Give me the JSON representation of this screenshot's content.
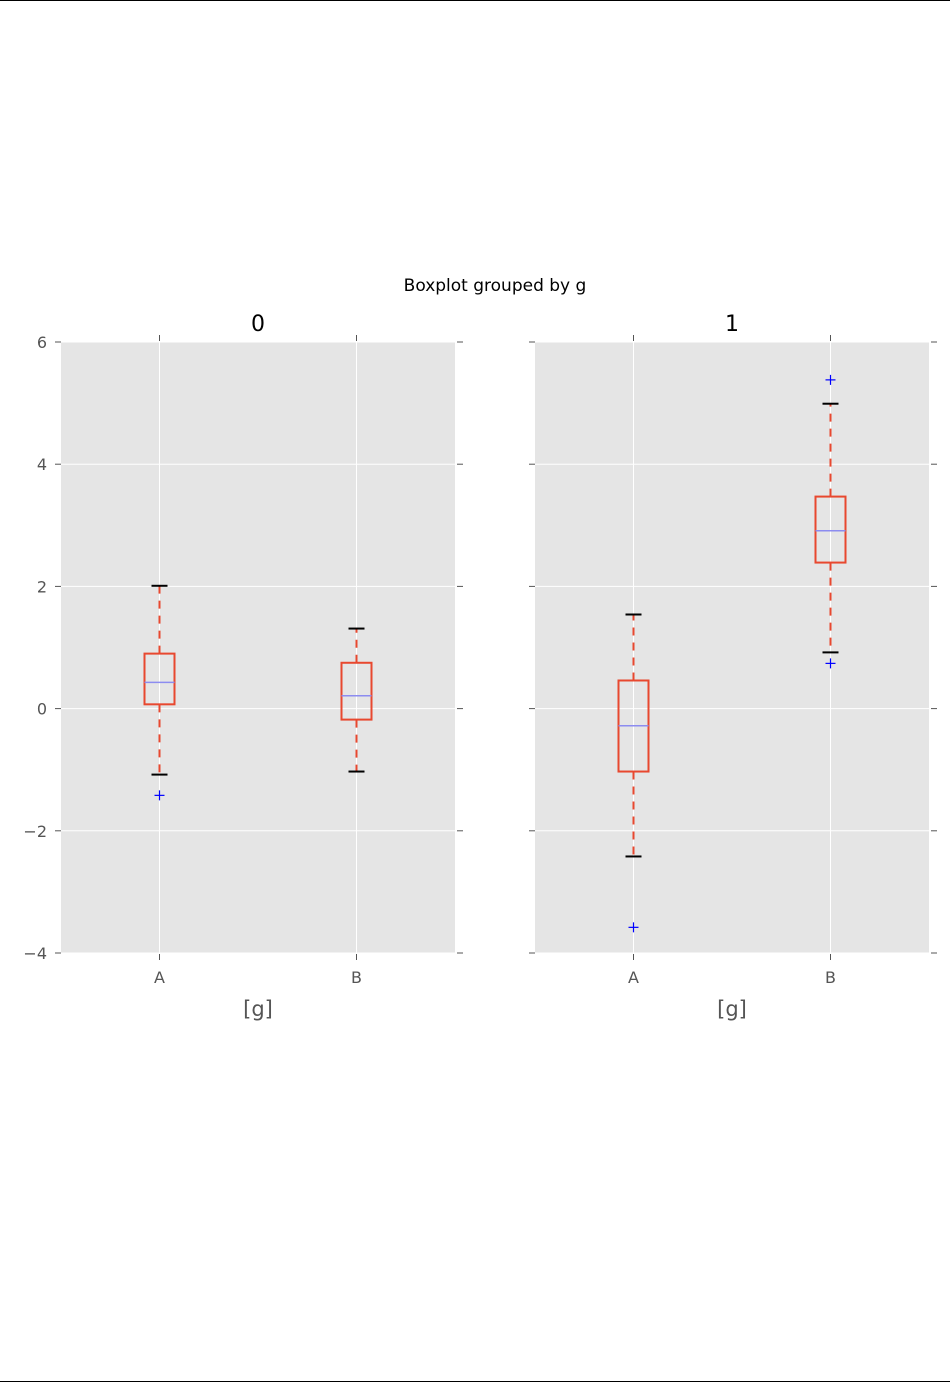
{
  "chart_data": {
    "type": "boxplot",
    "title": "Boxplot grouped by g",
    "ylim": [
      -4,
      6
    ],
    "yticks": [
      -4,
      -2,
      0,
      2,
      4,
      6
    ],
    "ytick_labels": [
      "−4",
      "−2",
      "0",
      "2",
      "4",
      "6"
    ],
    "grid": true,
    "colors": {
      "box": "#e8482f",
      "median": "#8c8cf0",
      "cap": "#000000",
      "flier": "#0000ff",
      "background": "#e5e5e5",
      "grid": "#ffffff"
    },
    "panels": [
      {
        "title": "0",
        "xlabel": "[g]",
        "categories": [
          "A",
          "B"
        ],
        "boxes": [
          {
            "whislo": -1.08,
            "q1": 0.07,
            "med": 0.43,
            "q3": 0.9,
            "whishi": 2.01,
            "fliers": [
              -1.42
            ]
          },
          {
            "whislo": -1.03,
            "q1": -0.18,
            "med": 0.21,
            "q3": 0.75,
            "whishi": 1.31,
            "fliers": []
          }
        ]
      },
      {
        "title": "1",
        "xlabel": "[g]",
        "categories": [
          "A",
          "B"
        ],
        "boxes": [
          {
            "whislo": -2.42,
            "q1": -1.03,
            "med": -0.28,
            "q3": 0.46,
            "whishi": 1.54,
            "fliers": [
              -3.58
            ]
          },
          {
            "whislo": 0.92,
            "q1": 2.39,
            "med": 2.91,
            "q3": 3.47,
            "whishi": 4.99,
            "fliers": [
              5.38,
              0.74
            ]
          }
        ]
      }
    ]
  }
}
